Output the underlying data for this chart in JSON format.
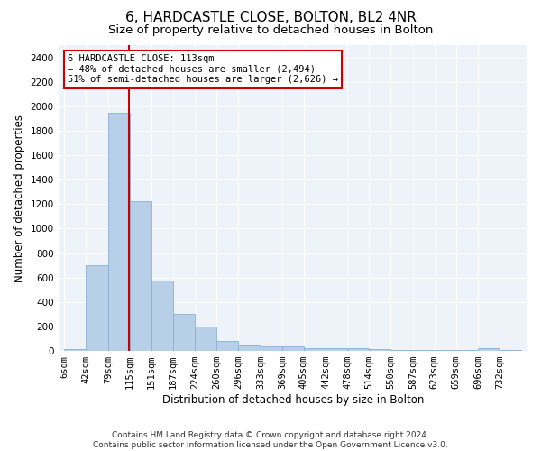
{
  "title": "6, HARDCASTLE CLOSE, BOLTON, BL2 4NR",
  "subtitle": "Size of property relative to detached houses in Bolton",
  "xlabel": "Distribution of detached houses by size in Bolton",
  "ylabel": "Number of detached properties",
  "footer_line1": "Contains HM Land Registry data © Crown copyright and database right 2024.",
  "footer_line2": "Contains public sector information licensed under the Open Government Licence v3.0.",
  "bar_edges": [
    6,
    42,
    79,
    115,
    151,
    187,
    224,
    260,
    296,
    333,
    369,
    405,
    442,
    478,
    514,
    550,
    587,
    623,
    659,
    696,
    732,
    768
  ],
  "bar_labels": [
    "6sqm",
    "42sqm",
    "79sqm",
    "115sqm",
    "151sqm",
    "187sqm",
    "224sqm",
    "260sqm",
    "296sqm",
    "333sqm",
    "369sqm",
    "405sqm",
    "442sqm",
    "478sqm",
    "514sqm",
    "550sqm",
    "587sqm",
    "623sqm",
    "659sqm",
    "696sqm",
    "732sqm"
  ],
  "bar_heights": [
    15,
    700,
    1950,
    1225,
    575,
    305,
    200,
    80,
    45,
    38,
    38,
    20,
    20,
    20,
    18,
    8,
    5,
    5,
    5,
    22,
    5
  ],
  "bar_color": "#b8cfe8",
  "bar_edgecolor": "#8ab0d4",
  "grid_color": "#d0dff0",
  "property_line_x": 113,
  "property_line_color": "#cc0000",
  "annotation_text": "6 HARDCASTLE CLOSE: 113sqm\n← 48% of detached houses are smaller (2,494)\n51% of semi-detached houses are larger (2,626) →",
  "annotation_box_color": "#cc0000",
  "annotation_box_facecolor": "white",
  "ylim": [
    0,
    2500
  ],
  "yticks": [
    0,
    200,
    400,
    600,
    800,
    1000,
    1200,
    1400,
    1600,
    1800,
    2000,
    2200,
    2400
  ],
  "title_fontsize": 11,
  "subtitle_fontsize": 9.5,
  "axis_label_fontsize": 8.5,
  "tick_fontsize": 7.5,
  "footer_fontsize": 6.5,
  "annot_fontsize": 7.5
}
